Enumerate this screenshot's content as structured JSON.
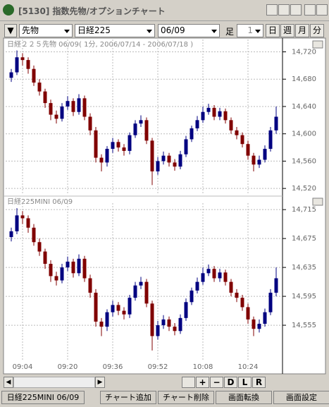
{
  "window": {
    "title": "[5130] 指数先物/オプションチャート"
  },
  "toolbar": {
    "market": "先物",
    "index": "日経225",
    "contract": "06/09",
    "bar_label": "足",
    "bar_count": "1",
    "periods": [
      "日",
      "週",
      "月",
      "分"
    ]
  },
  "nav_buttons": [
    "+",
    "−",
    "D",
    "L",
    "R"
  ],
  "bottom_tabs": [
    "日経225MINI 06/09",
    "チャート追加",
    "チャート削除",
    "画面転換",
    "画面設定"
  ],
  "chart_data": [
    {
      "type": "candlestick",
      "title": "日経２２５先物 06/09( 1分, 2006/07/14 - 2006/07/18 )",
      "up_color": "#000080",
      "down_color": "#800000",
      "grid": true,
      "x": [
        0,
        2,
        4,
        6,
        8,
        10,
        12,
        14,
        16,
        18,
        20,
        22,
        24,
        26,
        28,
        30,
        32,
        34,
        36,
        38,
        40,
        42,
        44,
        46,
        48,
        50,
        52,
        54,
        56,
        58,
        60,
        62,
        64,
        66,
        68,
        70,
        72,
        74,
        76,
        78,
        80,
        82,
        84,
        86,
        88,
        90,
        92,
        94
      ],
      "open": [
        14682,
        14690,
        14712,
        14708,
        14695,
        14675,
        14662,
        14645,
        14628,
        14622,
        14640,
        14648,
        14632,
        14652,
        14625,
        14605,
        14565,
        14558,
        14578,
        14588,
        14580,
        14575,
        14598,
        14615,
        14620,
        14590,
        14545,
        14560,
        14568,
        14558,
        14552,
        14570,
        14592,
        14608,
        14620,
        14632,
        14638,
        14625,
        14633,
        14620,
        14605,
        14598,
        14585,
        14568,
        14555,
        14562,
        14578,
        14605
      ],
      "high": [
        14695,
        14722,
        14718,
        14712,
        14700,
        14680,
        14666,
        14650,
        14634,
        14645,
        14655,
        14652,
        14658,
        14656,
        14630,
        14610,
        14570,
        14582,
        14594,
        14592,
        14585,
        14602,
        14620,
        14627,
        14624,
        14594,
        14566,
        14574,
        14572,
        14563,
        14575,
        14597,
        14612,
        14626,
        14640,
        14644,
        14642,
        14638,
        14637,
        14624,
        14610,
        14602,
        14590,
        14572,
        14568,
        14583,
        14610,
        14640
      ],
      "low": [
        14676,
        14686,
        14700,
        14688,
        14670,
        14656,
        14638,
        14620,
        14615,
        14618,
        14635,
        14626,
        14628,
        14620,
        14598,
        14558,
        14545,
        14552,
        14572,
        14574,
        14568,
        14570,
        14594,
        14610,
        14585,
        14525,
        14540,
        14555,
        14552,
        14546,
        14548,
        14566,
        14588,
        14604,
        14616,
        14628,
        14620,
        14620,
        14615,
        14600,
        14592,
        14580,
        14562,
        14545,
        14550,
        14558,
        14574,
        14600
      ],
      "close": [
        14690,
        14712,
        14708,
        14695,
        14675,
        14662,
        14645,
        14628,
        14622,
        14640,
        14648,
        14632,
        14652,
        14625,
        14605,
        14565,
        14558,
        14578,
        14588,
        14580,
        14575,
        14598,
        14615,
        14620,
        14590,
        14545,
        14560,
        14568,
        14558,
        14552,
        14570,
        14592,
        14608,
        14620,
        14632,
        14638,
        14625,
        14633,
        14620,
        14605,
        14598,
        14585,
        14568,
        14555,
        14562,
        14578,
        14605,
        14625
      ],
      "xlim": [
        -2,
        96
      ],
      "ylim": [
        14515,
        14736
      ],
      "yticks": [
        {
          "value": 14720,
          "label": "14,720"
        },
        {
          "value": 14680,
          "label": "14,680"
        },
        {
          "value": 14640,
          "label": "14,640"
        },
        {
          "value": 14600,
          "label": "14,600"
        },
        {
          "value": 14560,
          "label": "14,560"
        },
        {
          "value": 14520,
          "label": "14,520"
        }
      ]
    },
    {
      "type": "candlestick",
      "title": "日経225MINI 06/09",
      "up_color": "#000080",
      "down_color": "#800000",
      "grid": true,
      "x": [
        0,
        2,
        4,
        6,
        8,
        10,
        12,
        14,
        16,
        18,
        20,
        22,
        24,
        26,
        28,
        30,
        32,
        34,
        36,
        38,
        40,
        42,
        44,
        46,
        48,
        50,
        52,
        54,
        56,
        58,
        60,
        62,
        64,
        66,
        68,
        70,
        72,
        74,
        76,
        78,
        80,
        82,
        84,
        86,
        88,
        90,
        92,
        94
      ],
      "open": [
        14677,
        14685,
        14707,
        14703,
        14690,
        14670,
        14657,
        14640,
        14623,
        14617,
        14635,
        14643,
        14627,
        14647,
        14620,
        14600,
        14560,
        14553,
        14573,
        14583,
        14575,
        14570,
        14593,
        14610,
        14615,
        14585,
        14540,
        14555,
        14563,
        14553,
        14547,
        14565,
        14587,
        14603,
        14615,
        14627,
        14633,
        14620,
        14628,
        14615,
        14600,
        14593,
        14580,
        14563,
        14550,
        14557,
        14573,
        14600
      ],
      "high": [
        14690,
        14717,
        14713,
        14707,
        14695,
        14675,
        14661,
        14645,
        14629,
        14640,
        14650,
        14647,
        14653,
        14651,
        14625,
        14605,
        14565,
        14577,
        14589,
        14587,
        14580,
        14597,
        14615,
        14622,
        14619,
        14589,
        14561,
        14569,
        14567,
        14558,
        14570,
        14592,
        14607,
        14621,
        14635,
        14639,
        14637,
        14633,
        14632,
        14619,
        14605,
        14597,
        14585,
        14567,
        14563,
        14578,
        14605,
        14635
      ],
      "low": [
        14671,
        14681,
        14695,
        14683,
        14665,
        14651,
        14633,
        14615,
        14610,
        14613,
        14630,
        14621,
        14623,
        14615,
        14593,
        14553,
        14540,
        14547,
        14567,
        14569,
        14563,
        14565,
        14589,
        14605,
        14580,
        14520,
        14535,
        14550,
        14547,
        14541,
        14543,
        14561,
        14583,
        14599,
        14611,
        14623,
        14615,
        14615,
        14610,
        14595,
        14587,
        14575,
        14557,
        14540,
        14545,
        14553,
        14569,
        14595
      ],
      "close": [
        14685,
        14707,
        14703,
        14690,
        14670,
        14657,
        14640,
        14623,
        14617,
        14635,
        14643,
        14627,
        14647,
        14620,
        14600,
        14560,
        14553,
        14573,
        14583,
        14575,
        14570,
        14593,
        14610,
        14615,
        14585,
        14540,
        14555,
        14563,
        14553,
        14547,
        14565,
        14587,
        14603,
        14615,
        14627,
        14633,
        14620,
        14628,
        14615,
        14600,
        14593,
        14580,
        14563,
        14550,
        14557,
        14573,
        14600,
        14620
      ],
      "xlim": [
        -2,
        96
      ],
      "ylim": [
        14517,
        14722
      ],
      "yticks": [
        {
          "value": 14715,
          "label": "14,715"
        },
        {
          "value": 14675,
          "label": "14,675"
        },
        {
          "value": 14635,
          "label": "14,635"
        },
        {
          "value": 14595,
          "label": "14,595"
        },
        {
          "value": 14555,
          "label": "14,555"
        }
      ],
      "xticks": [
        {
          "value": 4,
          "label": "09:04"
        },
        {
          "value": 20,
          "label": "09:20"
        },
        {
          "value": 36,
          "label": "09:36"
        },
        {
          "value": 52,
          "label": "09:52"
        },
        {
          "value": 68,
          "label": "10:08"
        },
        {
          "value": 84,
          "label": "10:24"
        }
      ]
    }
  ]
}
